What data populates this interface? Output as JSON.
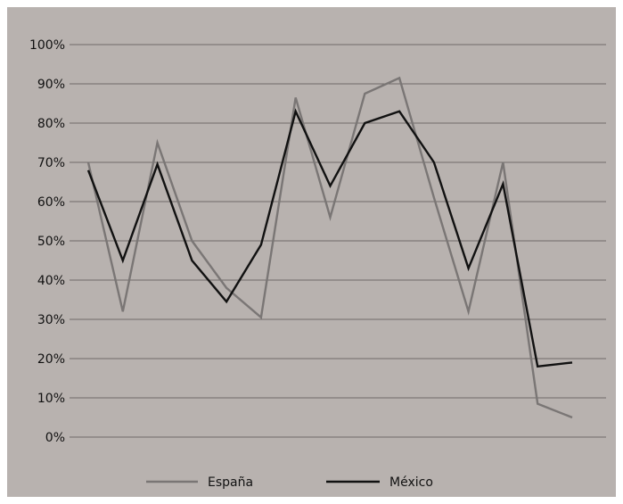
{
  "chart_data": {
    "type": "line",
    "title": "",
    "xlabel": "",
    "ylabel": "",
    "ylim": [
      0,
      100
    ],
    "yticks": [
      "100%",
      "90%",
      "80%",
      "70%",
      "60%",
      "50%",
      "40%",
      "30%",
      "20%",
      "10%",
      "0%"
    ],
    "x": [
      1,
      2,
      3,
      4,
      5,
      6,
      7,
      8,
      9,
      10,
      11,
      12,
      13,
      14,
      15
    ],
    "grid": true,
    "legend_position": "bottom",
    "series": [
      {
        "name": "España",
        "color": "#7a7675",
        "values": [
          70,
          32,
          75,
          50,
          38,
          30.5,
          86.5,
          56,
          87.5,
          91.5,
          61,
          32,
          70,
          8.5,
          5
        ]
      },
      {
        "name": "México",
        "color": "#111111",
        "values": [
          68,
          45,
          69.5,
          45,
          34.5,
          49,
          83,
          64,
          80,
          83,
          70,
          43,
          64.5,
          18,
          19
        ]
      }
    ]
  }
}
